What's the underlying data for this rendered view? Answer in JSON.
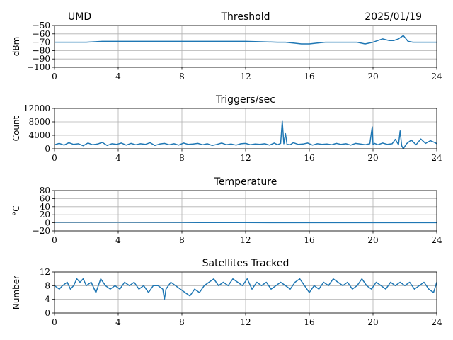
{
  "header": {
    "site": "UMD",
    "date": "2025/01/19"
  },
  "colors": {
    "series": "#1f77b4",
    "grid": "#b0b0b0"
  },
  "chart_data": [
    {
      "id": "threshold",
      "type": "line",
      "title": "Threshold",
      "xlabel": "",
      "ylabel": "dBm",
      "xlim": [
        0,
        24
      ],
      "ylim": [
        -100,
        -50
      ],
      "xticks": [
        0,
        4,
        8,
        12,
        16,
        20,
        24
      ],
      "xtick_labels": [
        "0",
        "4",
        "8",
        "12",
        "16",
        "20",
        "24"
      ],
      "yticks": [
        -100,
        -90,
        -80,
        -70,
        -60,
        -50
      ],
      "ytick_labels": [
        "−100",
        "−90",
        "−80",
        "−70",
        "−60",
        "−50"
      ],
      "grid": true,
      "series": [
        {
          "x": [
            0,
            1,
            2,
            3,
            4,
            5,
            6,
            7,
            8,
            9,
            10,
            11,
            12,
            13,
            14,
            14.5,
            15,
            15.5,
            16,
            16.5,
            17,
            17.5,
            18,
            18.5,
            19,
            19.5,
            20,
            20.3,
            20.6,
            21,
            21.3,
            21.6,
            21.9,
            22.2,
            22.5,
            23,
            23.5,
            24
          ],
          "y": [
            -70,
            -70,
            -70,
            -69,
            -69,
            -69,
            -69,
            -69,
            -69,
            -69,
            -69,
            -69,
            -69,
            -69.5,
            -70,
            -70,
            -71,
            -72,
            -72,
            -71,
            -70,
            -70,
            -70,
            -70,
            -70,
            -72,
            -70,
            -68,
            -66,
            -68,
            -68,
            -66,
            -62,
            -69,
            -70,
            -70,
            -70,
            -70
          ]
        }
      ]
    },
    {
      "id": "triggers",
      "type": "line",
      "title": "Triggers/sec",
      "xlabel": "",
      "ylabel": "Count",
      "xlim": [
        0,
        24
      ],
      "ylim": [
        0,
        12000
      ],
      "xticks": [
        0,
        4,
        8,
        12,
        16,
        20,
        24
      ],
      "xtick_labels": [
        "0",
        "4",
        "8",
        "12",
        "16",
        "20",
        "24"
      ],
      "yticks": [
        0,
        4000,
        8000,
        12000
      ],
      "ytick_labels": [
        "0",
        "4000",
        "8000",
        "12000"
      ],
      "grid": true,
      "series": [
        {
          "x": [
            0,
            0.3,
            0.6,
            0.9,
            1.2,
            1.5,
            1.8,
            2.1,
            2.4,
            2.7,
            3.0,
            3.3,
            3.6,
            3.9,
            4.2,
            4.5,
            4.8,
            5.1,
            5.4,
            5.7,
            6.0,
            6.3,
            6.6,
            6.9,
            7.2,
            7.5,
            7.8,
            8.1,
            8.4,
            8.7,
            9.0,
            9.3,
            9.6,
            9.9,
            10.2,
            10.5,
            10.8,
            11.1,
            11.4,
            11.7,
            12.0,
            12.3,
            12.6,
            12.9,
            13.2,
            13.5,
            13.8,
            14.0,
            14.2,
            14.3,
            14.4,
            14.5,
            14.6,
            14.8,
            15.0,
            15.3,
            15.6,
            15.9,
            16.2,
            16.5,
            16.8,
            17.1,
            17.4,
            17.7,
            18.0,
            18.3,
            18.6,
            18.9,
            19.2,
            19.5,
            19.8,
            19.95,
            20.0,
            20.1,
            20.3,
            20.6,
            20.9,
            21.2,
            21.4,
            21.6,
            21.7,
            21.8,
            21.9,
            22.1,
            22.4,
            22.7,
            23.0,
            23.3,
            23.6,
            23.9,
            24
          ],
          "y": [
            1200,
            1600,
            1100,
            1800,
            1300,
            1500,
            900,
            1700,
            1200,
            1400,
            1900,
            1000,
            1500,
            1300,
            1700,
            1100,
            1600,
            1200,
            1500,
            1300,
            1800,
            1000,
            1400,
            1600,
            1200,
            1500,
            1100,
            1700,
            1300,
            1400,
            1600,
            1200,
            1500,
            1000,
            1300,
            1700,
            1200,
            1400,
            1100,
            1500,
            1600,
            1200,
            1400,
            1300,
            1500,
            1100,
            1700,
            1200,
            1600,
            8200,
            1500,
            4500,
            1300,
            1200,
            1800,
            1300,
            1400,
            1700,
            1100,
            1500,
            1300,
            1400,
            1200,
            1600,
            1300,
            1500,
            1100,
            1600,
            1400,
            1200,
            1500,
            6500,
            1300,
            1600,
            1200,
            1700,
            1300,
            1500,
            2800,
            1200,
            5300,
            900,
            0,
            1500,
            2600,
            1200,
            2900,
            1600,
            2400,
            1800,
            1500
          ]
        }
      ]
    },
    {
      "id": "temperature",
      "type": "line",
      "title": "Temperature",
      "xlabel": "",
      "ylabel": "°C",
      "xlim": [
        0,
        24
      ],
      "ylim": [
        -20,
        80
      ],
      "xticks": [
        0,
        4,
        8,
        12,
        16,
        20,
        24
      ],
      "xtick_labels": [
        "0",
        "4",
        "8",
        "12",
        "16",
        "20",
        "24"
      ],
      "yticks": [
        -20,
        0,
        20,
        40,
        60,
        80
      ],
      "ytick_labels": [
        "−20",
        "0",
        "20",
        "40",
        "60",
        "80"
      ],
      "grid": true,
      "series": [
        {
          "x": [
            0,
            2,
            4,
            6,
            8,
            9,
            10,
            12,
            14,
            16,
            18,
            20,
            22,
            24
          ],
          "y": [
            1.5,
            1.5,
            1.5,
            1.2,
            1.0,
            0.5,
            0.5,
            0.5,
            0.4,
            0.4,
            0.3,
            0.4,
            0.3,
            0.3
          ]
        }
      ]
    },
    {
      "id": "satellites",
      "type": "line",
      "title": "Satellites Tracked",
      "xlabel": "",
      "ylabel": "Number",
      "xlim": [
        0,
        24
      ],
      "ylim": [
        0,
        12
      ],
      "xticks": [
        0,
        4,
        8,
        12,
        16,
        20,
        24
      ],
      "xtick_labels": [
        "0",
        "4",
        "8",
        "12",
        "16",
        "20",
        "24"
      ],
      "yticks": [
        0,
        4,
        8,
        12
      ],
      "ytick_labels": [
        "0",
        "4",
        "8",
        "12"
      ],
      "grid": true,
      "series": [
        {
          "x": [
            0,
            0.3,
            0.5,
            0.8,
            1.0,
            1.2,
            1.4,
            1.6,
            1.8,
            2.0,
            2.3,
            2.6,
            2.9,
            3.2,
            3.5,
            3.8,
            4.1,
            4.4,
            4.7,
            5.0,
            5.3,
            5.6,
            5.9,
            6.2,
            6.5,
            6.8,
            6.9,
            7.0,
            7.3,
            7.6,
            7.9,
            8.2,
            8.5,
            8.8,
            9.1,
            9.4,
            9.7,
            10.0,
            10.3,
            10.6,
            10.9,
            11.2,
            11.5,
            11.8,
            12.1,
            12.4,
            12.7,
            13.0,
            13.3,
            13.6,
            13.9,
            14.2,
            14.5,
            14.8,
            15.1,
            15.4,
            15.7,
            16.0,
            16.3,
            16.6,
            16.9,
            17.2,
            17.5,
            17.8,
            18.1,
            18.4,
            18.7,
            19.0,
            19.3,
            19.6,
            19.9,
            20.2,
            20.5,
            20.8,
            21.1,
            21.4,
            21.7,
            22.0,
            22.3,
            22.6,
            22.9,
            23.2,
            23.5,
            23.8,
            24
          ],
          "y": [
            8,
            7,
            8,
            9,
            7,
            8,
            10,
            9,
            10,
            8,
            9,
            6,
            10,
            8,
            7,
            8,
            7,
            9,
            8,
            9,
            7,
            8,
            6,
            8,
            8,
            7,
            4,
            7,
            9,
            8,
            7,
            6,
            5,
            7,
            6,
            8,
            9,
            10,
            8,
            9,
            8,
            10,
            9,
            8,
            10,
            7,
            9,
            8,
            9,
            7,
            8,
            9,
            8,
            7,
            9,
            10,
            8,
            6,
            8,
            7,
            9,
            8,
            10,
            9,
            8,
            9,
            7,
            8,
            10,
            8,
            7,
            9,
            8,
            7,
            9,
            8,
            9,
            8,
            9,
            7,
            8,
            9,
            7,
            6,
            9
          ]
        }
      ]
    }
  ]
}
